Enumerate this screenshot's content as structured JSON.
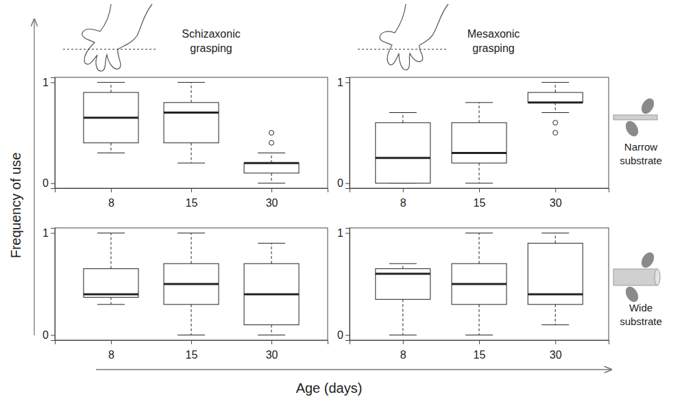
{
  "figure": {
    "x_label": "Age (days)",
    "y_label": "Frequency of use",
    "column_titles": [
      "Schizaxonic grasping",
      "Mesaxonic grasping"
    ],
    "row_labels": [
      "Narrow substrate",
      "Wide substrate"
    ]
  },
  "chart_data": [
    {
      "type": "box",
      "color": "#222222",
      "categories": [
        "8",
        "15",
        "30"
      ],
      "ylim": [
        -0.05,
        1.05
      ],
      "yticks": [
        0,
        1
      ],
      "boxes": [
        {
          "min": 0.3,
          "q1": 0.4,
          "median": 0.65,
          "q3": 0.9,
          "max": 1.0,
          "outliers": []
        },
        {
          "min": 0.2,
          "q1": 0.4,
          "median": 0.7,
          "q3": 0.8,
          "max": 1.0,
          "outliers": []
        },
        {
          "min": 0.0,
          "q1": 0.1,
          "median": 0.2,
          "q3": 0.2,
          "max": 0.3,
          "outliers": [
            0.4,
            0.5
          ]
        }
      ]
    },
    {
      "type": "box",
      "color": "#222222",
      "categories": [
        "8",
        "15",
        "30"
      ],
      "ylim": [
        -0.05,
        1.05
      ],
      "yticks": [
        0,
        1
      ],
      "boxes": [
        {
          "min": 0.0,
          "q1": 0.0,
          "median": 0.25,
          "q3": 0.6,
          "max": 0.7,
          "outliers": []
        },
        {
          "min": 0.0,
          "q1": 0.2,
          "median": 0.3,
          "q3": 0.6,
          "max": 0.8,
          "outliers": []
        },
        {
          "min": 0.7,
          "q1": 0.8,
          "median": 0.8,
          "q3": 0.9,
          "max": 1.0,
          "outliers": [
            0.6,
            0.5
          ]
        }
      ]
    },
    {
      "type": "box",
      "color": "#222222",
      "categories": [
        "8",
        "15",
        "30"
      ],
      "ylim": [
        -0.05,
        1.05
      ],
      "yticks": [
        0,
        1
      ],
      "boxes": [
        {
          "min": 0.3,
          "q1": 0.37,
          "median": 0.4,
          "q3": 0.65,
          "max": 1.0,
          "outliers": []
        },
        {
          "min": 0.0,
          "q1": 0.3,
          "median": 0.5,
          "q3": 0.7,
          "max": 1.0,
          "outliers": []
        },
        {
          "min": 0.0,
          "q1": 0.1,
          "median": 0.4,
          "q3": 0.7,
          "max": 0.9,
          "outliers": []
        }
      ]
    },
    {
      "type": "box",
      "color": "#222222",
      "categories": [
        "8",
        "15",
        "30"
      ],
      "ylim": [
        -0.05,
        1.05
      ],
      "yticks": [
        0,
        1
      ],
      "boxes": [
        {
          "min": 0.0,
          "q1": 0.35,
          "median": 0.6,
          "q3": 0.65,
          "max": 0.7,
          "outliers": []
        },
        {
          "min": 0.0,
          "q1": 0.3,
          "median": 0.5,
          "q3": 0.7,
          "max": 1.0,
          "outliers": []
        },
        {
          "min": 0.1,
          "q1": 0.3,
          "median": 0.4,
          "q3": 0.9,
          "max": 1.0,
          "outliers": []
        }
      ]
    }
  ]
}
